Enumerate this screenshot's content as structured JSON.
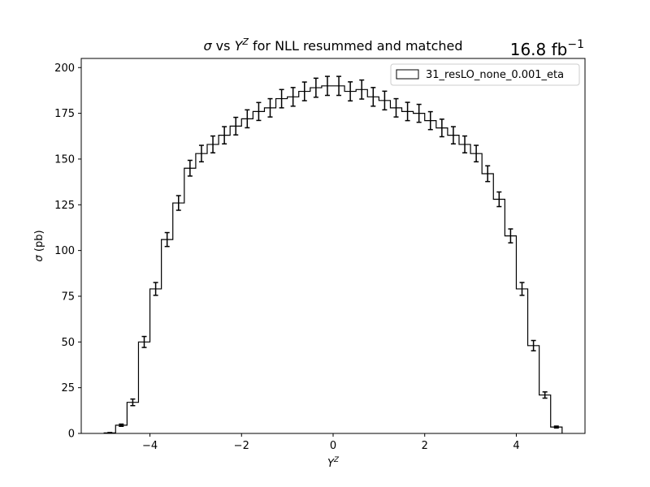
{
  "chart_data": {
    "type": "histogram",
    "title": "σ vs Y^Z for NLL resummed and matched",
    "title_parts": {
      "sym": "σ",
      "vs": " vs ",
      "Y": "Y",
      "Z": "Z",
      "rest": " for NLL resummed and matched"
    },
    "luminosity": {
      "value": "16.8 fb",
      "exp": "−1"
    },
    "xlabel": {
      "base": "Y",
      "sup": "Z"
    },
    "ylabel": {
      "sym": "σ",
      "unit": " (pb)"
    },
    "xlim": [
      -5.5,
      5.5
    ],
    "ylim": [
      0,
      205
    ],
    "xticks": [
      -4,
      -2,
      0,
      2,
      4
    ],
    "xtick_labels": [
      "−4",
      "−2",
      "0",
      "2",
      "4"
    ],
    "yticks": [
      0,
      25,
      50,
      75,
      100,
      125,
      150,
      175,
      200
    ],
    "ytick_labels": [
      "0",
      "25",
      "50",
      "75",
      "100",
      "125",
      "150",
      "175",
      "200"
    ],
    "grid": false,
    "legend": {
      "position": "top-right",
      "entries": [
        "31_resLO_none_0.001_eta"
      ]
    },
    "series": [
      {
        "name": "31_resLO_none_0.001_eta",
        "color": "#000000",
        "bin_edges": [
          -5.0,
          -4.75,
          -4.5,
          -4.25,
          -4.0,
          -3.75,
          -3.5,
          -3.25,
          -3.0,
          -2.75,
          -2.5,
          -2.25,
          -2.0,
          -1.75,
          -1.5,
          -1.25,
          -1.0,
          -0.75,
          -0.5,
          -0.25,
          0.0,
          0.25,
          0.5,
          0.75,
          1.0,
          1.25,
          1.5,
          1.75,
          2.0,
          2.25,
          2.5,
          2.75,
          3.0,
          3.25,
          3.5,
          3.75,
          4.0,
          4.25,
          4.5,
          4.75,
          5.0
        ],
        "values": [
          0.3,
          4.5,
          17,
          50,
          79,
          106,
          126,
          145,
          153,
          158,
          163,
          168,
          172,
          176,
          178,
          183,
          184,
          187,
          189,
          190,
          190,
          187,
          188,
          184,
          182,
          178,
          176,
          175,
          171,
          167,
          163,
          158,
          153,
          142,
          128,
          108,
          79,
          48,
          21,
          3.5
        ],
        "errors": [
          0.2,
          0.6,
          1.8,
          3.0,
          3.5,
          3.8,
          4.0,
          4.3,
          4.5,
          4.6,
          4.7,
          4.8,
          4.9,
          4.9,
          5.0,
          5.0,
          5.1,
          5.1,
          5.2,
          5.2,
          5.2,
          5.2,
          5.2,
          5.1,
          5.1,
          5.0,
          5.0,
          4.9,
          4.9,
          4.8,
          4.7,
          4.6,
          4.5,
          4.3,
          4.0,
          3.8,
          3.5,
          2.8,
          1.7,
          0.5
        ]
      }
    ]
  }
}
